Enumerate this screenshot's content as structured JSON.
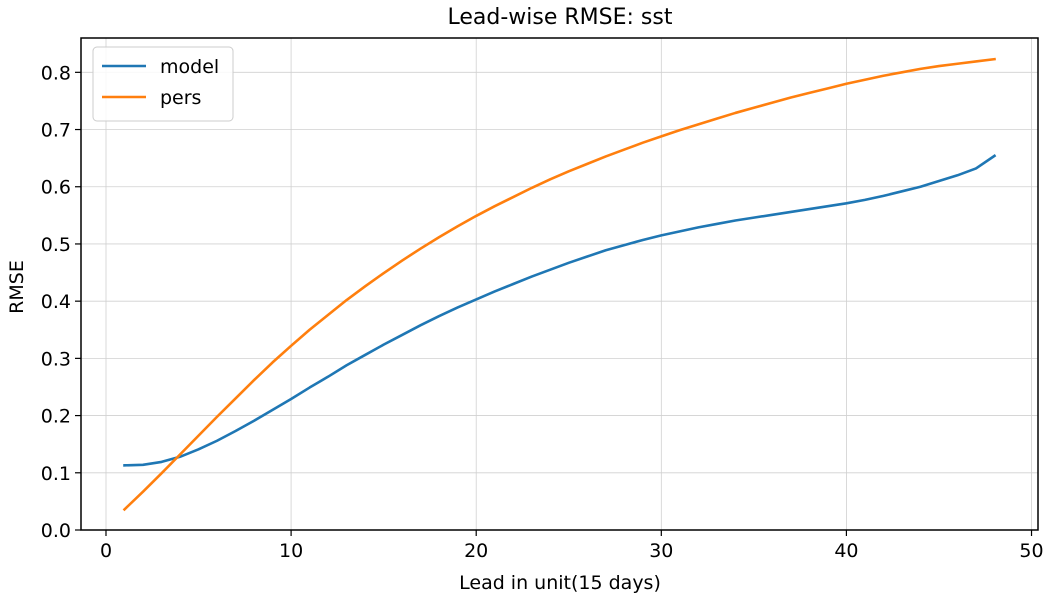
{
  "chart_data": {
    "type": "line",
    "title": "Lead-wise RMSE: sst",
    "xlabel": "Lead in unit(15 days)",
    "ylabel": "RMSE",
    "xlim": [
      -1.35,
      50.35
    ],
    "ylim": [
      0.0,
      0.86
    ],
    "xticks": [
      0,
      10,
      20,
      30,
      40,
      50
    ],
    "xtick_labels": [
      "0",
      "10",
      "20",
      "30",
      "40",
      "50"
    ],
    "yticks": [
      0.0,
      0.1,
      0.2,
      0.3,
      0.4,
      0.5,
      0.6,
      0.7,
      0.8
    ],
    "ytick_labels": [
      "0.0",
      "0.1",
      "0.2",
      "0.3",
      "0.4",
      "0.5",
      "0.6",
      "0.7",
      "0.8"
    ],
    "grid": true,
    "legend_position": "top-left",
    "x": [
      1,
      2,
      3,
      4,
      5,
      6,
      7,
      8,
      9,
      10,
      11,
      12,
      13,
      14,
      15,
      16,
      17,
      18,
      19,
      20,
      21,
      22,
      23,
      24,
      25,
      26,
      27,
      28,
      29,
      30,
      31,
      32,
      33,
      34,
      35,
      36,
      37,
      38,
      39,
      40,
      41,
      42,
      43,
      44,
      45,
      46,
      47,
      48
    ],
    "series": [
      {
        "name": "model",
        "color": "#1f77b4",
        "values": [
          0.113,
          0.114,
          0.119,
          0.128,
          0.141,
          0.156,
          0.173,
          0.191,
          0.21,
          0.229,
          0.249,
          0.268,
          0.288,
          0.306,
          0.324,
          0.341,
          0.358,
          0.374,
          0.389,
          0.403,
          0.417,
          0.43,
          0.443,
          0.455,
          0.467,
          0.478,
          0.489,
          0.498,
          0.507,
          0.515,
          0.522,
          0.529,
          0.535,
          0.541,
          0.546,
          0.551,
          0.556,
          0.561,
          0.566,
          0.571,
          0.577,
          0.584,
          0.592,
          0.6,
          0.61,
          0.62,
          0.632,
          0.654
        ]
      },
      {
        "name": "pers",
        "color": "#ff7f0e",
        "values": [
          0.036,
          0.067,
          0.099,
          0.132,
          0.165,
          0.198,
          0.23,
          0.262,
          0.293,
          0.322,
          0.35,
          0.376,
          0.402,
          0.426,
          0.449,
          0.471,
          0.492,
          0.512,
          0.531,
          0.549,
          0.566,
          0.582,
          0.598,
          0.613,
          0.627,
          0.64,
          0.653,
          0.665,
          0.677,
          0.688,
          0.699,
          0.709,
          0.719,
          0.729,
          0.738,
          0.747,
          0.756,
          0.764,
          0.772,
          0.78,
          0.787,
          0.794,
          0.8,
          0.806,
          0.811,
          0.815,
          0.819,
          0.823
        ]
      }
    ]
  }
}
